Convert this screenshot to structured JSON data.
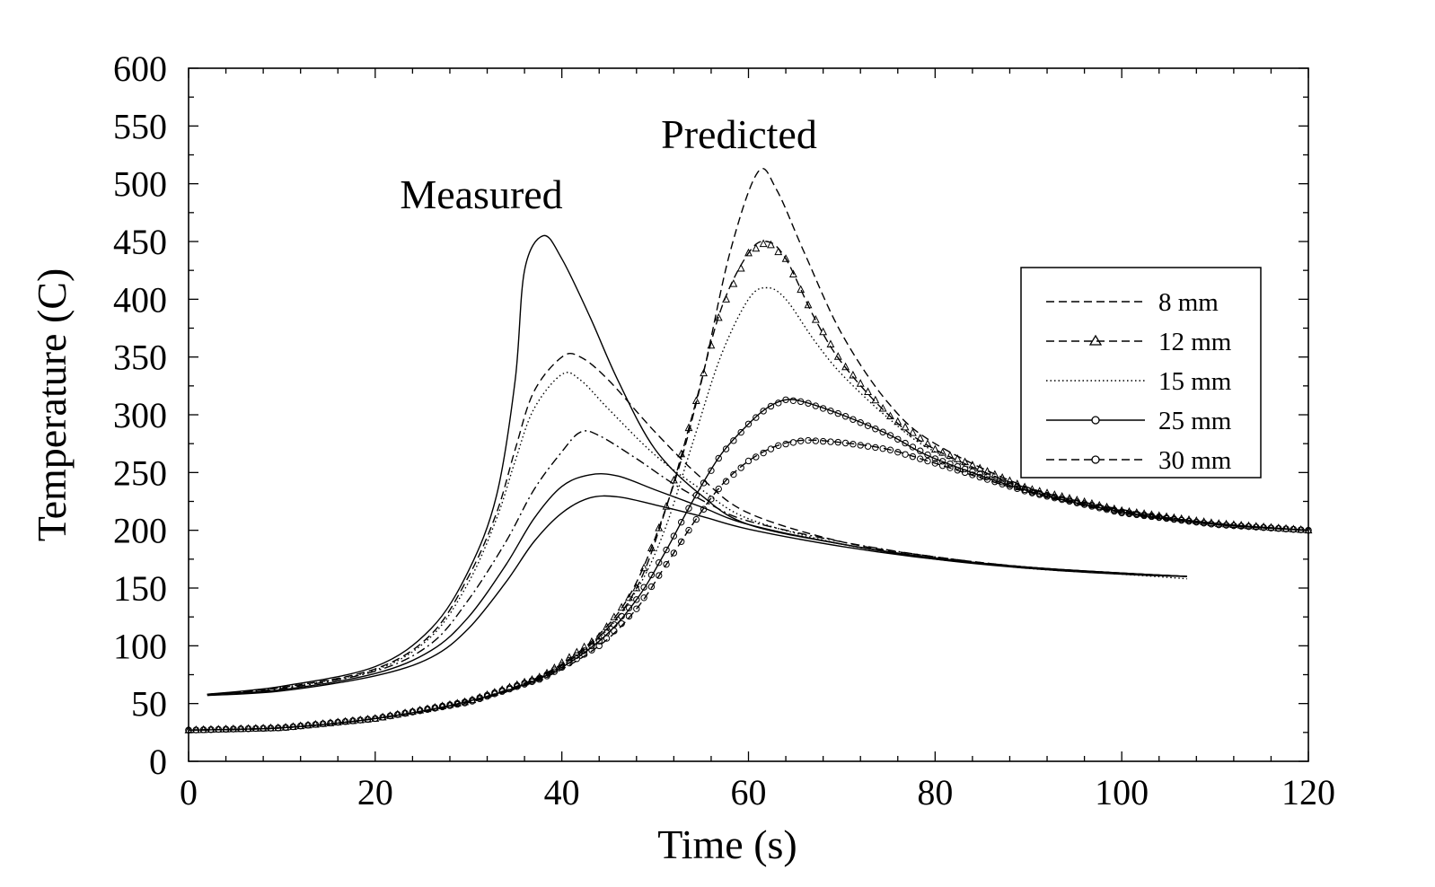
{
  "chart_data": {
    "type": "line",
    "title": "",
    "xlabel": "Time (s)",
    "ylabel": "Temperature (C)",
    "xlim": [
      0,
      120
    ],
    "ylim": [
      0,
      600
    ],
    "x_ticks": [
      0,
      20,
      40,
      60,
      80,
      100,
      120
    ],
    "y_ticks": [
      0,
      50,
      100,
      150,
      200,
      250,
      300,
      350,
      400,
      450,
      500,
      550,
      600
    ],
    "x_tick_labels": [
      "0",
      "20",
      "40",
      "60",
      "80",
      "100",
      "120"
    ],
    "y_tick_labels": [
      "0",
      "50",
      "100",
      "150",
      "200",
      "250",
      "300",
      "350",
      "400",
      "450",
      "500",
      "550",
      "600"
    ],
    "grid": false,
    "legend_position": "right",
    "legend": [
      {
        "label": "8 mm",
        "style": "dashed",
        "marker": "none"
      },
      {
        "label": "12 mm",
        "style": "dashed",
        "marker": "triangle"
      },
      {
        "label": "15 mm",
        "style": "dotted",
        "marker": "none"
      },
      {
        "label": "25 mm",
        "style": "solid",
        "marker": "circle"
      },
      {
        "label": "30 mm",
        "style": "dashed",
        "marker": "circle"
      }
    ],
    "annotations": [
      {
        "text": "Measured",
        "x": 33,
        "y": 485
      },
      {
        "text": "Predicted",
        "x": 61,
        "y": 535
      }
    ],
    "series": [
      {
        "group": "Measured",
        "style": "solid",
        "marker": "none",
        "points": [
          [
            2,
            58
          ],
          [
            10,
            65
          ],
          [
            20,
            82
          ],
          [
            26,
            115
          ],
          [
            30,
            165
          ],
          [
            33,
            230
          ],
          [
            35,
            330
          ],
          [
            36,
            425
          ],
          [
            38,
            455
          ],
          [
            40,
            435
          ],
          [
            43,
            385
          ],
          [
            46,
            330
          ],
          [
            50,
            270
          ],
          [
            55,
            230
          ],
          [
            60,
            205
          ],
          [
            70,
            188
          ],
          [
            80,
            175
          ],
          [
            90,
            167
          ],
          [
            100,
            162
          ],
          [
            107,
            160
          ]
        ]
      },
      {
        "group": "Measured",
        "style": "dashed",
        "marker": "none",
        "points": [
          [
            2,
            58
          ],
          [
            10,
            64
          ],
          [
            20,
            80
          ],
          [
            26,
            110
          ],
          [
            30,
            160
          ],
          [
            33,
            215
          ],
          [
            35,
            270
          ],
          [
            37,
            320
          ],
          [
            40,
            350
          ],
          [
            42,
            350
          ],
          [
            45,
            330
          ],
          [
            50,
            285
          ],
          [
            55,
            245
          ],
          [
            60,
            215
          ],
          [
            70,
            190
          ],
          [
            80,
            177
          ],
          [
            90,
            168
          ],
          [
            100,
            163
          ],
          [
            107,
            160
          ]
        ]
      },
      {
        "group": "Measured",
        "style": "dotted",
        "marker": "none",
        "points": [
          [
            2,
            58
          ],
          [
            10,
            64
          ],
          [
            20,
            79
          ],
          [
            26,
            108
          ],
          [
            30,
            155
          ],
          [
            33,
            210
          ],
          [
            35,
            260
          ],
          [
            37,
            305
          ],
          [
            40,
            335
          ],
          [
            42,
            330
          ],
          [
            45,
            305
          ],
          [
            50,
            265
          ],
          [
            55,
            235
          ],
          [
            60,
            210
          ],
          [
            70,
            188
          ],
          [
            80,
            176
          ],
          [
            90,
            167
          ],
          [
            100,
            162
          ],
          [
            107,
            158
          ]
        ]
      },
      {
        "group": "Measured",
        "style": "dashdot",
        "marker": "none",
        "points": [
          [
            2,
            58
          ],
          [
            10,
            63
          ],
          [
            20,
            78
          ],
          [
            26,
            102
          ],
          [
            30,
            140
          ],
          [
            34,
            190
          ],
          [
            37,
            235
          ],
          [
            40,
            268
          ],
          [
            42,
            285
          ],
          [
            44,
            282
          ],
          [
            48,
            262
          ],
          [
            52,
            240
          ],
          [
            56,
            222
          ],
          [
            60,
            208
          ],
          [
            70,
            190
          ],
          [
            80,
            177
          ],
          [
            90,
            168
          ],
          [
            100,
            163
          ],
          [
            107,
            160
          ]
        ]
      },
      {
        "group": "Measured",
        "style": "solid",
        "marker": "none",
        "points": [
          [
            2,
            58
          ],
          [
            10,
            62
          ],
          [
            20,
            76
          ],
          [
            26,
            96
          ],
          [
            30,
            125
          ],
          [
            34,
            170
          ],
          [
            37,
            210
          ],
          [
            40,
            238
          ],
          [
            43,
            248
          ],
          [
            46,
            247
          ],
          [
            50,
            235
          ],
          [
            55,
            220
          ],
          [
            60,
            205
          ],
          [
            70,
            188
          ],
          [
            80,
            176
          ],
          [
            90,
            168
          ],
          [
            100,
            163
          ],
          [
            107,
            160
          ]
        ]
      },
      {
        "group": "Measured",
        "style": "solid",
        "marker": "none",
        "points": [
          [
            2,
            57
          ],
          [
            10,
            61
          ],
          [
            20,
            74
          ],
          [
            26,
            90
          ],
          [
            30,
            115
          ],
          [
            34,
            155
          ],
          [
            37,
            190
          ],
          [
            40,
            215
          ],
          [
            43,
            228
          ],
          [
            46,
            229
          ],
          [
            50,
            222
          ],
          [
            55,
            212
          ],
          [
            60,
            201
          ],
          [
            70,
            186
          ],
          [
            80,
            175
          ],
          [
            90,
            168
          ],
          [
            100,
            163
          ],
          [
            107,
            160
          ]
        ]
      },
      {
        "group": "Predicted",
        "label": "8 mm",
        "style": "dashed",
        "marker": "none",
        "points": [
          [
            0,
            27
          ],
          [
            10,
            29
          ],
          [
            20,
            37
          ],
          [
            30,
            52
          ],
          [
            38,
            75
          ],
          [
            44,
            110
          ],
          [
            48,
            155
          ],
          [
            52,
            240
          ],
          [
            55,
            330
          ],
          [
            58,
            440
          ],
          [
            61,
            510
          ],
          [
            63,
            495
          ],
          [
            66,
            440
          ],
          [
            70,
            370
          ],
          [
            75,
            310
          ],
          [
            80,
            275
          ],
          [
            90,
            237
          ],
          [
            100,
            218
          ],
          [
            110,
            206
          ],
          [
            120,
            200
          ]
        ]
      },
      {
        "group": "Predicted",
        "label": "12 mm",
        "style": "dashed",
        "marker": "triangle",
        "points": [
          [
            0,
            27
          ],
          [
            10,
            29
          ],
          [
            20,
            37
          ],
          [
            30,
            52
          ],
          [
            38,
            74
          ],
          [
            44,
            108
          ],
          [
            48,
            150
          ],
          [
            51,
            215
          ],
          [
            54,
            300
          ],
          [
            57,
            390
          ],
          [
            60,
            440
          ],
          [
            62,
            450
          ],
          [
            64,
            435
          ],
          [
            67,
            385
          ],
          [
            70,
            345
          ],
          [
            75,
            300
          ],
          [
            80,
            270
          ],
          [
            90,
            236
          ],
          [
            100,
            217
          ],
          [
            110,
            206
          ],
          [
            120,
            200
          ]
        ]
      },
      {
        "group": "Predicted",
        "label": "15 mm",
        "style": "dotted",
        "marker": "none",
        "points": [
          [
            0,
            27
          ],
          [
            10,
            29
          ],
          [
            20,
            37
          ],
          [
            30,
            52
          ],
          [
            38,
            74
          ],
          [
            44,
            107
          ],
          [
            48,
            148
          ],
          [
            51,
            200
          ],
          [
            54,
            275
          ],
          [
            57,
            350
          ],
          [
            60,
            400
          ],
          [
            62,
            410
          ],
          [
            64,
            400
          ],
          [
            67,
            365
          ],
          [
            70,
            335
          ],
          [
            75,
            297
          ],
          [
            80,
            268
          ],
          [
            90,
            235
          ],
          [
            100,
            217
          ],
          [
            110,
            206
          ],
          [
            120,
            200
          ]
        ]
      },
      {
        "group": "Predicted",
        "label": "25 mm",
        "style": "solid",
        "marker": "circle",
        "points": [
          [
            0,
            27
          ],
          [
            10,
            29
          ],
          [
            20,
            37
          ],
          [
            30,
            52
          ],
          [
            38,
            73
          ],
          [
            44,
            104
          ],
          [
            48,
            140
          ],
          [
            51,
            180
          ],
          [
            54,
            225
          ],
          [
            57,
            265
          ],
          [
            60,
            292
          ],
          [
            62,
            306
          ],
          [
            64,
            313
          ],
          [
            66,
            311
          ],
          [
            70,
            300
          ],
          [
            75,
            283
          ],
          [
            80,
            262
          ],
          [
            90,
            234
          ],
          [
            100,
            216
          ],
          [
            110,
            205
          ],
          [
            120,
            200
          ]
        ]
      },
      {
        "group": "Predicted",
        "label": "30 mm",
        "style": "dashed",
        "marker": "circle",
        "points": [
          [
            0,
            27
          ],
          [
            10,
            29
          ],
          [
            20,
            37
          ],
          [
            30,
            51
          ],
          [
            38,
            72
          ],
          [
            44,
            100
          ],
          [
            48,
            132
          ],
          [
            51,
            168
          ],
          [
            54,
            205
          ],
          [
            57,
            238
          ],
          [
            60,
            260
          ],
          [
            63,
            273
          ],
          [
            66,
            278
          ],
          [
            70,
            276
          ],
          [
            75,
            270
          ],
          [
            80,
            258
          ],
          [
            90,
            233
          ],
          [
            100,
            215
          ],
          [
            110,
            205
          ],
          [
            120,
            200
          ]
        ]
      }
    ]
  }
}
